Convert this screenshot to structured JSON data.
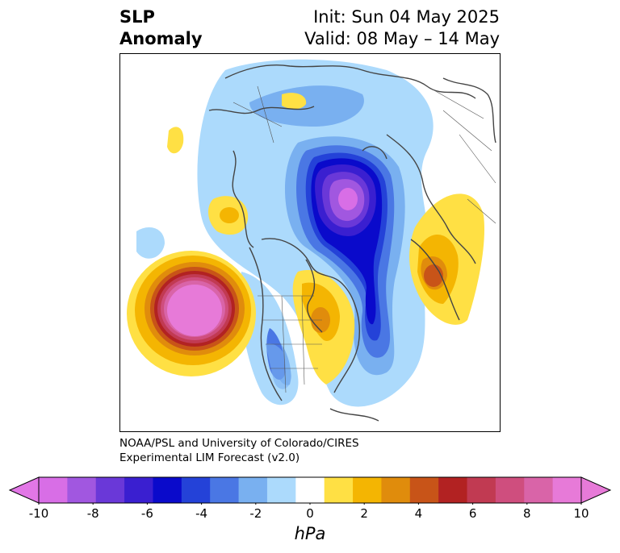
{
  "title": {
    "left_line1": "SLP",
    "left_line2": "Anomaly",
    "right_line1": "Init: Sun 04 May 2025",
    "right_line2": "Valid: 08 May – 14 May"
  },
  "credit": {
    "line1": "NOAA/PSL and University of Colorado/CIRES",
    "line2": "Experimental LIM Forecast (v2.0)"
  },
  "colorbar": {
    "unit": "hPa",
    "ticks": [
      "-10",
      "-8",
      "-6",
      "-4",
      "-2",
      "0",
      "2",
      "4",
      "6",
      "8",
      "10"
    ],
    "levels": [
      -10,
      -9,
      -8,
      -7,
      -6,
      -5,
      -4,
      -3,
      -2,
      -1,
      1,
      2,
      3,
      4,
      5,
      6,
      7,
      8,
      9,
      10
    ],
    "colors": [
      "#d86ee6",
      "#a157e0",
      "#6a38d8",
      "#3a1fd0",
      "#0a0acb",
      "#2442d8",
      "#4a77e4",
      "#79b0f0",
      "#acdafc",
      "#ffffff",
      "#ffe044",
      "#f4b502",
      "#e08c0c",
      "#c85418",
      "#b22222",
      "#c13a52",
      "#cf4e7e",
      "#d964a8",
      "#e77ad8"
    ],
    "under_color": "#e277e6",
    "over_color": "#e77ad8"
  },
  "map": {
    "projection": "north-polar-stereographic",
    "anomalies": [
      {
        "name": "north-pacific-high",
        "peak_hpa": 10
      },
      {
        "name": "arctic-low",
        "peak_hpa": -9
      },
      {
        "name": "north-atlantic-low",
        "peak_hpa": -6
      },
      {
        "name": "europe-high",
        "peak_hpa": 5
      },
      {
        "name": "eastern-canada-high",
        "peak_hpa": 4
      },
      {
        "name": "east-siberia-high",
        "peak_hpa": 2
      },
      {
        "name": "central-us-low",
        "peak_hpa": -3
      }
    ]
  }
}
